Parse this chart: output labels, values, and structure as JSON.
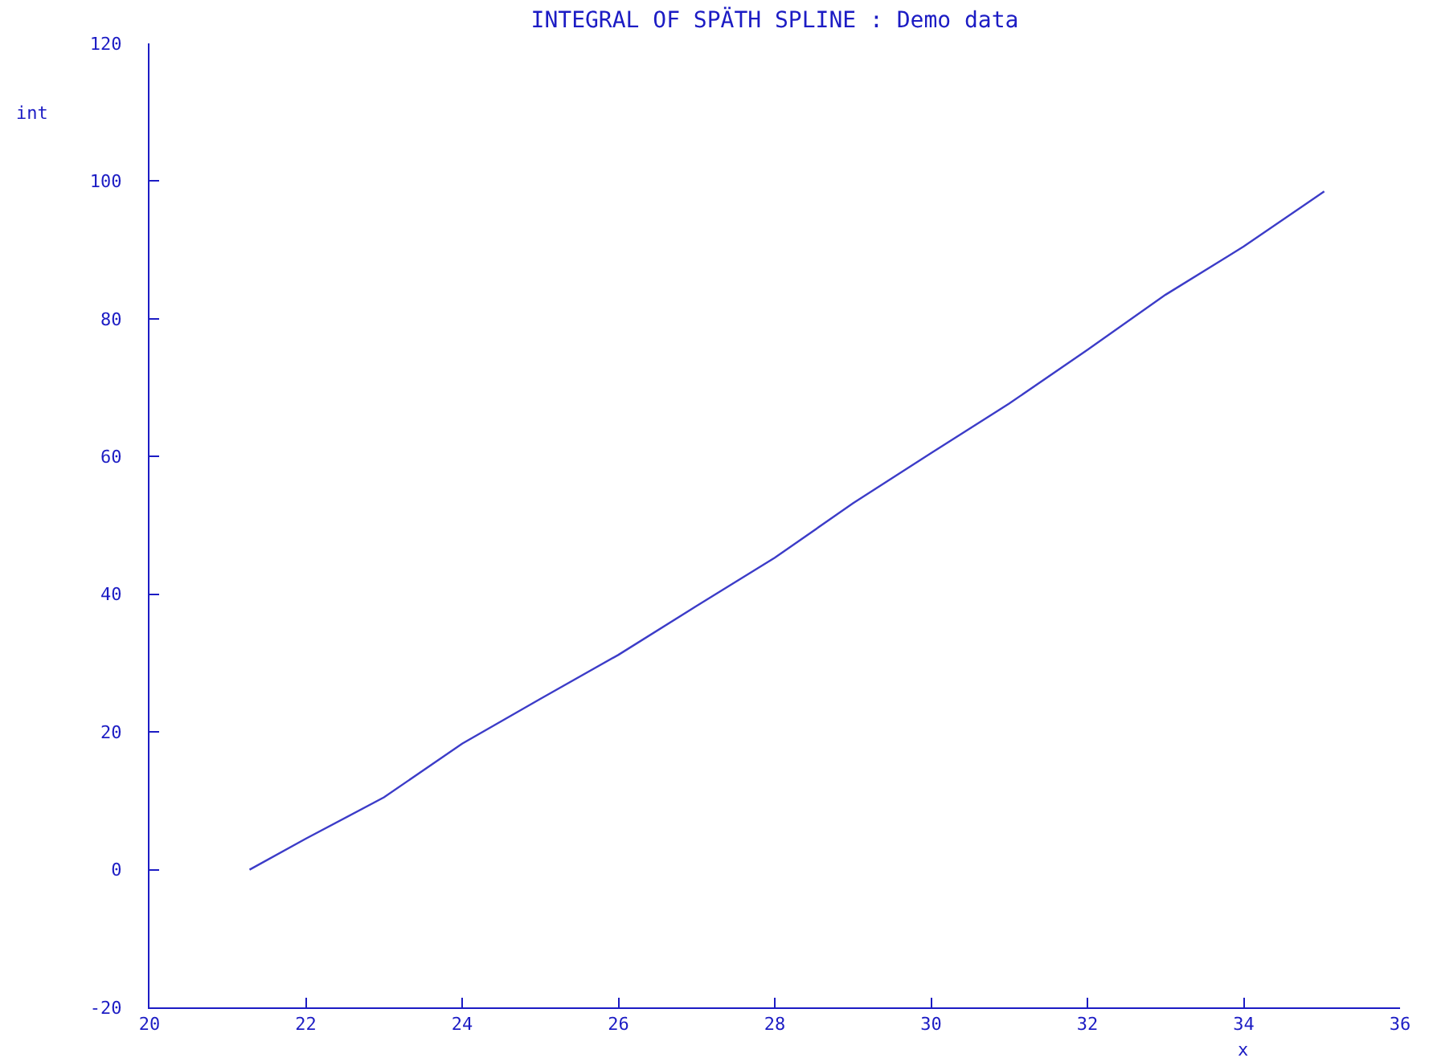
{
  "chart_data": {
    "type": "line",
    "title": "INTEGRAL OF SPÄTH SPLINE : Demo data",
    "xlabel": "x",
    "ylabel": "int",
    "x": [
      21.28,
      22,
      23,
      24,
      25,
      26,
      27,
      28,
      29,
      30,
      31,
      32,
      33,
      34,
      35.03
    ],
    "series": [
      {
        "color": "#3c3cc8",
        "values": [
          0,
          4.5,
          10.5,
          18.3,
          24.8,
          31.2,
          38.3,
          45.3,
          53.2,
          60.5,
          67.7,
          75.5,
          83.5,
          90.5,
          98.5
        ]
      }
    ],
    "xlim": [
      20,
      36
    ],
    "xticks": [
      20,
      22,
      24,
      26,
      28,
      30,
      32,
      34,
      36
    ],
    "ylim": [
      -20,
      120
    ],
    "yticks": [
      -20,
      0,
      20,
      40,
      60,
      80,
      100,
      120
    ],
    "grid": false,
    "marker": "none",
    "line_style": "solid"
  }
}
